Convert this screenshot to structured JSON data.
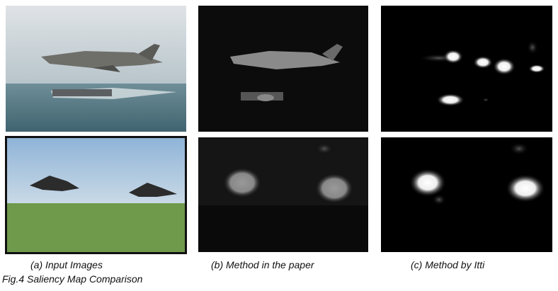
{
  "figure": {
    "panels": [
      {
        "label": "(a) Input Images"
      },
      {
        "label": "(b) Method in the paper"
      },
      {
        "label": "(c) Method by Itti"
      }
    ],
    "caption": "Fig.4 Saliency Map Comparison"
  }
}
